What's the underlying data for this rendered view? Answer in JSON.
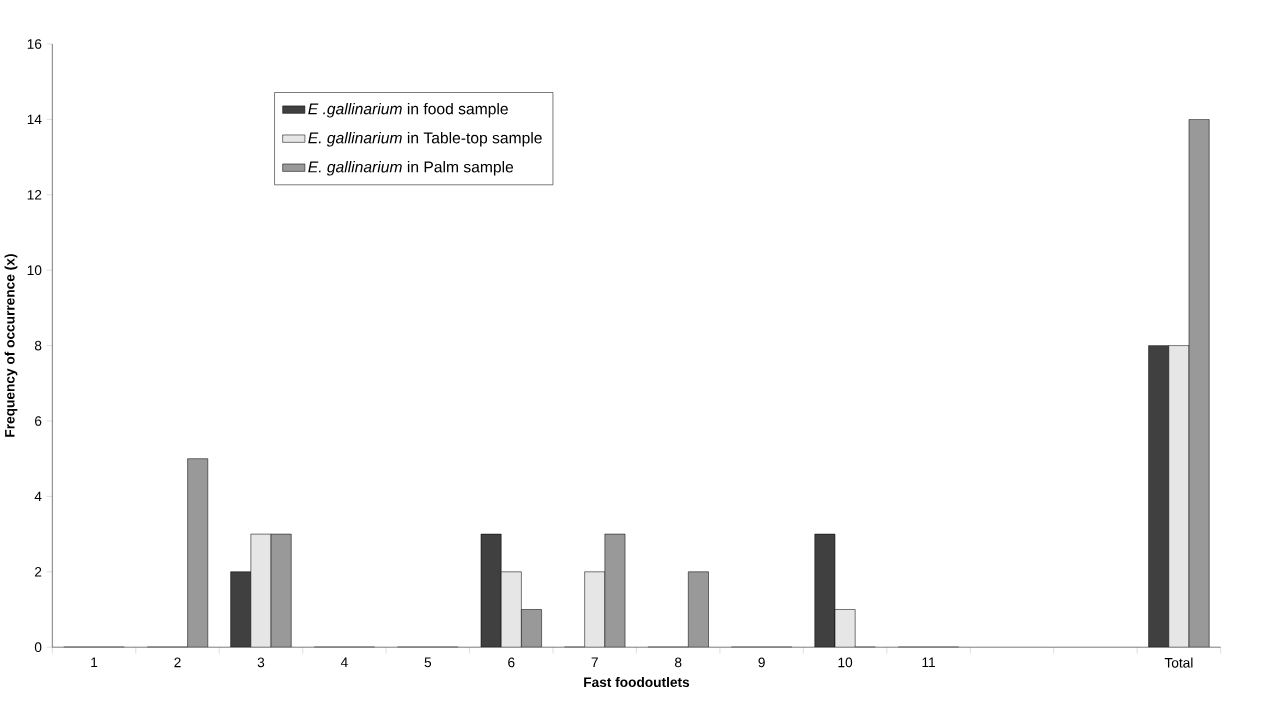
{
  "chart_data": {
    "type": "bar",
    "xlabel": "Fast foodoutlets",
    "ylabel": "Frequency of occurrence (x)",
    "categories": [
      "1",
      "2",
      "3",
      "4",
      "5",
      "6",
      "7",
      "8",
      "9",
      "10",
      "11",
      null,
      null,
      "Total"
    ],
    "ylim": [
      0,
      16
    ],
    "yticks": [
      0,
      2,
      4,
      6,
      8,
      10,
      12,
      14,
      16
    ],
    "grid": false,
    "legend": "top left",
    "series": [
      {
        "name": "*E .gallinarium* in food sample",
        "color": "#404040",
        "values": [
          0,
          0,
          2,
          0,
          0,
          3,
          0,
          0,
          0,
          3,
          0,
          null,
          null,
          8
        ]
      },
      {
        "name": "*E. gallinarium* in Table-top sample",
        "color": "#e6e6e6",
        "values": [
          0,
          0,
          3,
          0,
          0,
          2,
          2,
          0,
          0,
          1,
          0,
          null,
          null,
          8
        ]
      },
      {
        "name": "*E. gallinarium* in Palm sample",
        "color": "#999999",
        "values": [
          0,
          5,
          3,
          0,
          0,
          1,
          3,
          2,
          0,
          0,
          0,
          null,
          null,
          14
        ]
      }
    ]
  }
}
